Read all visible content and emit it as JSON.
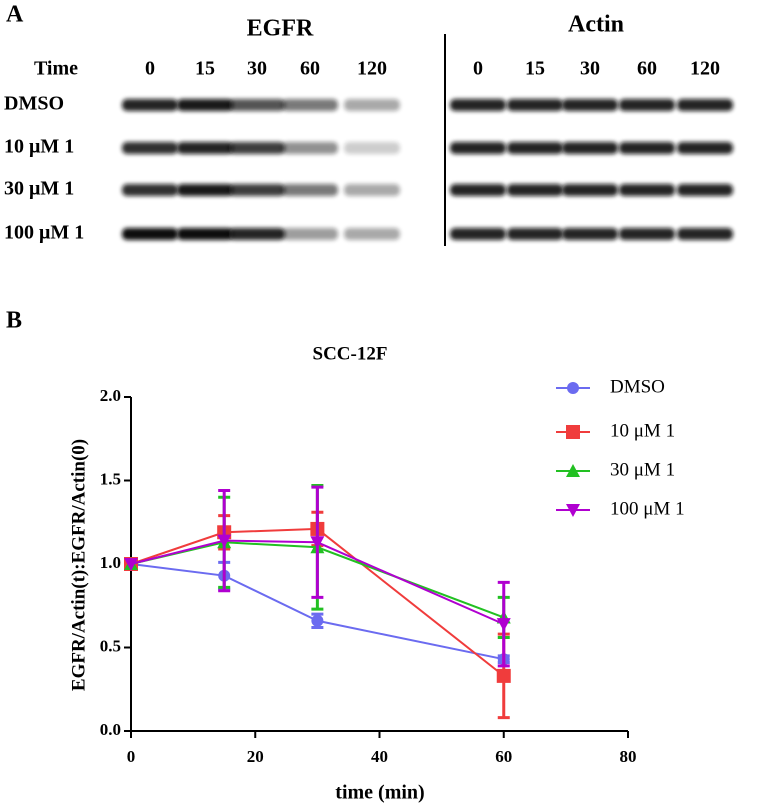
{
  "panel_a": {
    "label": "A",
    "time_header": "Time",
    "groups": [
      {
        "title": "EGFR",
        "times": [
          0,
          15,
          30,
          60,
          120
        ]
      },
      {
        "title": "Actin",
        "times": [
          0,
          15,
          30,
          60,
          120
        ]
      }
    ],
    "rows": [
      "DMSO",
      "10 μM 1",
      "30 μM 1",
      "100 μM 1"
    ]
  },
  "panel_b_label": "B",
  "chart_data": {
    "type": "line",
    "title": "SCC-12F",
    "x_label": "time (min)",
    "y_label": "EGFR/Actin(t):EGFR/Actin(0)",
    "x": [
      0,
      15,
      30,
      60
    ],
    "series": [
      {
        "name": "DMSO",
        "color": "#6b6bf0",
        "marker": "circle",
        "values": [
          1.0,
          0.93,
          0.66,
          0.43
        ],
        "errors": [
          0,
          0.08,
          0.04,
          0.02
        ]
      },
      {
        "name": "10 μM 1",
        "color": "#f03c3c",
        "marker": "square",
        "values": [
          1.0,
          1.19,
          1.21,
          0.33
        ],
        "errors": [
          0,
          0.1,
          0.1,
          0.25
        ]
      },
      {
        "name": "30 μM 1",
        "color": "#22c022",
        "marker": "triangle-up",
        "values": [
          1.0,
          1.13,
          1.1,
          0.68
        ],
        "errors": [
          0,
          0.27,
          0.37,
          0.12
        ]
      },
      {
        "name": "100 μM 1",
        "color": "#b000d0",
        "marker": "triangle-down",
        "values": [
          1.0,
          1.14,
          1.13,
          0.64
        ],
        "errors": [
          0,
          0.3,
          0.33,
          0.25
        ]
      }
    ],
    "xlim": [
      0,
      80
    ],
    "xticks": [
      0,
      20,
      40,
      60,
      80
    ],
    "ylim": [
      0,
      2
    ],
    "yticks": [
      {
        "value": 0,
        "label": "0.0"
      },
      {
        "value": 0.5,
        "label": "0.5"
      },
      {
        "value": 1,
        "label": "1.0"
      },
      {
        "value": 1.5,
        "label": "1.5"
      },
      {
        "value": 2,
        "label": "2.0"
      }
    ],
    "legend": "top-right"
  }
}
